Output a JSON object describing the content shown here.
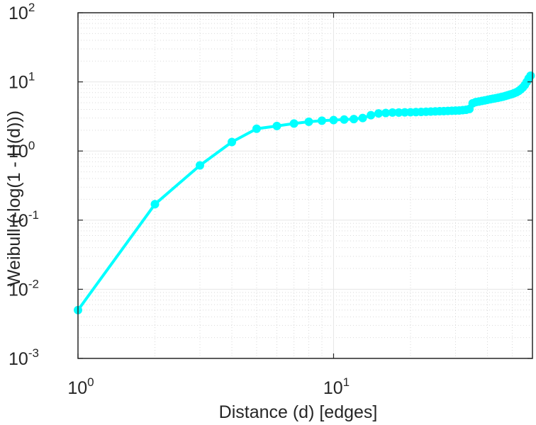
{
  "chart_data": {
    "type": "line",
    "xscale": "log",
    "yscale": "log",
    "xlabel": "Distance (d) [edges]",
    "ylabel": "Weibull (-log(1 - H(d)))",
    "xlim": [
      1,
      60
    ],
    "ylim": [
      0.001,
      100
    ],
    "x_ticks": [
      {
        "value": 1,
        "base": "10",
        "exp": "0"
      },
      {
        "value": 10,
        "base": "10",
        "exp": "1"
      }
    ],
    "y_ticks": [
      {
        "value": 0.001,
        "base": "10",
        "exp": "-3"
      },
      {
        "value": 0.01,
        "base": "10",
        "exp": "-2"
      },
      {
        "value": 0.1,
        "base": "10",
        "exp": "-1"
      },
      {
        "value": 1,
        "base": "10",
        "exp": "0"
      },
      {
        "value": 10,
        "base": "10",
        "exp": "1"
      },
      {
        "value": 100,
        "base": "10",
        "exp": "2"
      }
    ],
    "grid": true,
    "minor_grid": true,
    "series": [
      {
        "name": "Weibull",
        "color": "#00ffff",
        "marker": "circle",
        "x": [
          1,
          2,
          3,
          4,
          5,
          6,
          7,
          8,
          9,
          10,
          11,
          12,
          13,
          14,
          15,
          16,
          17,
          18,
          19,
          20,
          21,
          22,
          23,
          24,
          25,
          26,
          27,
          28,
          29,
          30,
          31,
          32,
          33,
          34,
          35,
          36,
          37,
          38,
          39,
          40,
          41,
          42,
          43,
          44,
          45,
          46,
          47,
          48,
          49,
          50,
          51,
          52,
          53,
          54,
          55,
          56,
          57,
          58,
          59
        ],
        "y": [
          0.005,
          0.17,
          0.62,
          1.35,
          2.1,
          2.3,
          2.5,
          2.65,
          2.75,
          2.8,
          2.85,
          2.9,
          3.0,
          3.3,
          3.5,
          3.55,
          3.6,
          3.6,
          3.62,
          3.64,
          3.66,
          3.68,
          3.7,
          3.72,
          3.74,
          3.76,
          3.78,
          3.8,
          3.82,
          3.84,
          3.86,
          3.9,
          3.95,
          4.05,
          4.9,
          5.1,
          5.2,
          5.3,
          5.4,
          5.5,
          5.6,
          5.7,
          5.8,
          5.9,
          6.0,
          6.1,
          6.25,
          6.4,
          6.55,
          6.7,
          6.9,
          7.1,
          7.4,
          7.8,
          8.3,
          9.0,
          10.0,
          11.2,
          12.3
        ]
      }
    ]
  }
}
